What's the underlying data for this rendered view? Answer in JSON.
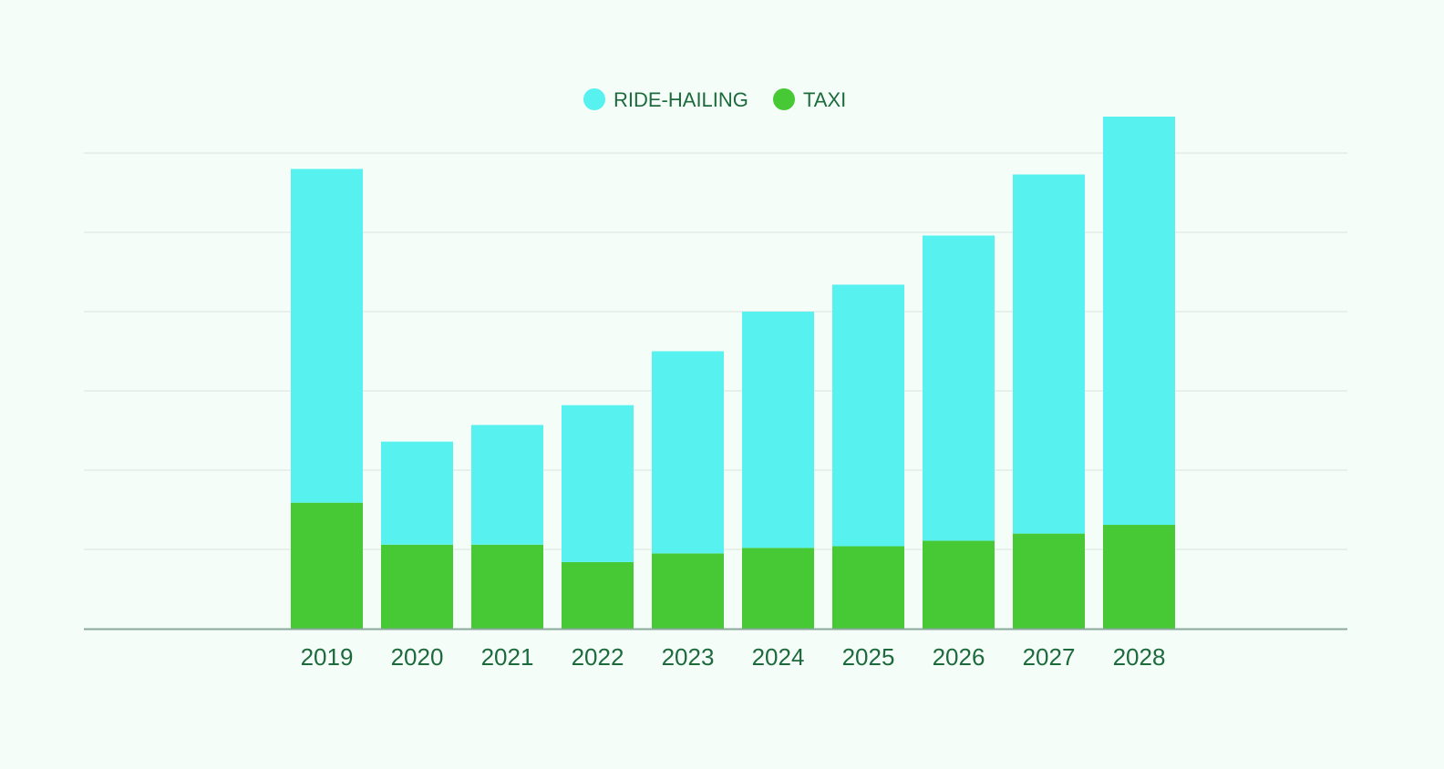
{
  "chart_data": {
    "type": "bar",
    "stacked": true,
    "title": "",
    "xlabel": "",
    "ylabel": "",
    "categories": [
      "2019",
      "2020",
      "2021",
      "2022",
      "2023",
      "2024",
      "2025",
      "2026",
      "2027",
      "2028"
    ],
    "series": [
      {
        "name": "TAXI",
        "color": "#46c934",
        "values": [
          1.59,
          1.06,
          1.06,
          0.84,
          0.95,
          1.02,
          1.04,
          1.11,
          1.2,
          1.31
        ]
      },
      {
        "name": "RIDE-HAILING",
        "color": "#57f2f0",
        "values": [
          4.21,
          1.3,
          1.51,
          1.98,
          2.55,
          2.98,
          3.3,
          3.85,
          4.53,
          5.15
        ]
      }
    ],
    "legend_order": [
      "RIDE-HAILING",
      "TAXI"
    ],
    "legend_position": "top-center",
    "ylim": [
      0,
      6
    ],
    "yticks": [
      0,
      1,
      2,
      3,
      4,
      5,
      6
    ],
    "y_tick_labels_shown": false,
    "grid": true
  }
}
